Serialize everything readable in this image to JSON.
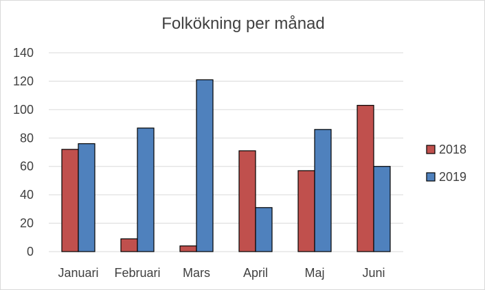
{
  "chart_data": {
    "type": "bar",
    "title": "Folkökning per månad",
    "xlabel": "",
    "ylabel": "",
    "categories": [
      "Januari",
      "Februari",
      "Mars",
      "April",
      "Maj",
      "Juni"
    ],
    "series": [
      {
        "name": "2018",
        "values": [
          72,
          9,
          4,
          71,
          57,
          103
        ],
        "color": "#c0504d"
      },
      {
        "name": "2019",
        "values": [
          76,
          87,
          121,
          31,
          86,
          60
        ],
        "color": "#4f81bd"
      }
    ],
    "ylim": [
      0,
      140
    ],
    "yticks": [
      0,
      20,
      40,
      60,
      80,
      100,
      120,
      140
    ],
    "grid": true,
    "legend_position": "right"
  }
}
